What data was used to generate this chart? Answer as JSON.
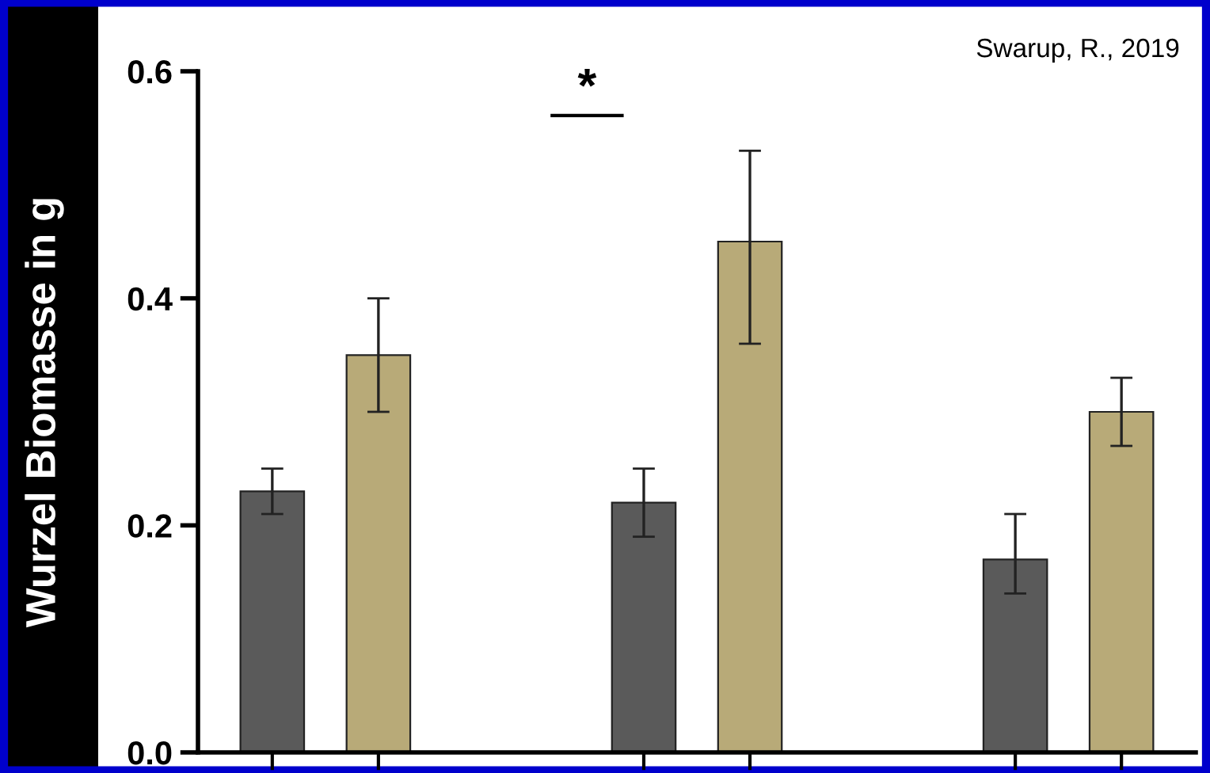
{
  "chart_data": {
    "type": "bar",
    "ylabel": "Wurzel Biomasse in g",
    "categories": [
      null,
      null,
      null
    ],
    "series": [
      {
        "color": "#5a5a5a",
        "values": [
          0.23,
          0.22,
          0.17
        ],
        "errors": [
          [
            0.21,
            0.25
          ],
          [
            0.19,
            0.25
          ],
          [
            0.14,
            0.21
          ]
        ]
      },
      {
        "color": "#b8aa78",
        "values": [
          0.35,
          0.45,
          0.3
        ],
        "errors": [
          [
            0.3,
            0.4
          ],
          [
            0.36,
            0.53
          ],
          [
            0.27,
            0.33
          ]
        ]
      }
    ],
    "ylim": [
      0,
      0.6
    ],
    "yticks": [
      {
        "value": 0,
        "label": "0.0"
      },
      {
        "value": 0.2,
        "label": "0.2"
      },
      {
        "value": 0.4,
        "label": "0.4"
      },
      {
        "value": 0.6,
        "label": "0.6"
      }
    ],
    "tick_labels": "y",
    "grid": false,
    "legend": false,
    "annotations": [
      "Swarup, R., 2019",
      "*"
    ]
  }
}
